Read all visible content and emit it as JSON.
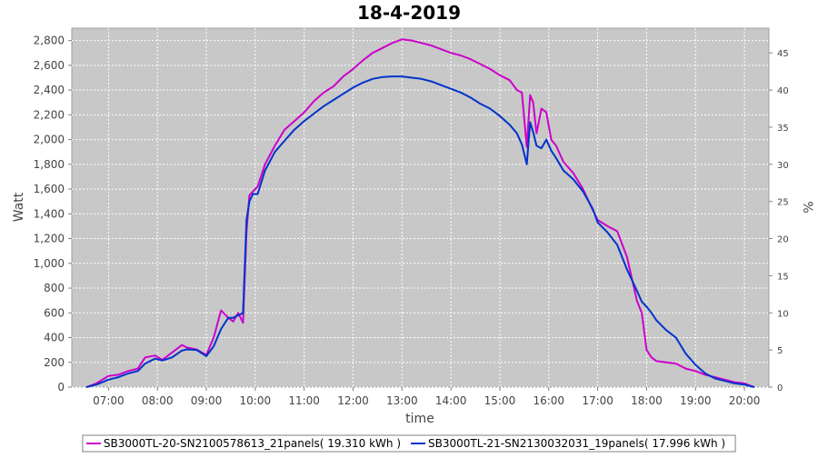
{
  "chart_data": {
    "type": "line",
    "title": "18-4-2019",
    "xlabel": "time",
    "ylabel": "Watt",
    "y2label": "%",
    "xlim": [
      6.25,
      20.5
    ],
    "ylim": [
      0,
      2900
    ],
    "y2lim": [
      0,
      48.33
    ],
    "xticks": [
      7,
      8,
      9,
      10,
      11,
      12,
      13,
      14,
      15,
      16,
      17,
      18,
      19,
      20
    ],
    "xtick_labels": [
      "07:00",
      "08:00",
      "09:00",
      "10:00",
      "11:00",
      "12:00",
      "13:00",
      "14:00",
      "15:00",
      "16:00",
      "17:00",
      "18:00",
      "19:00",
      "20:00"
    ],
    "yticks": [
      0,
      200,
      400,
      600,
      800,
      1000,
      1200,
      1400,
      1600,
      1800,
      2000,
      2200,
      2400,
      2600,
      2800
    ],
    "ytick_labels": [
      "0",
      "200",
      "400",
      "600",
      "800",
      "1,000",
      "1,200",
      "1,400",
      "1,600",
      "1,800",
      "2,000",
      "2,200",
      "2,400",
      "2,600",
      "2,800"
    ],
    "y2ticks": [
      0,
      5,
      10,
      15,
      20,
      25,
      30,
      35,
      40,
      45
    ],
    "y2tick_labels": [
      "0",
      "5",
      "10",
      "15",
      "20",
      "25",
      "30",
      "35",
      "40",
      "45"
    ],
    "grid": true,
    "legend_position": "bottom",
    "series": [
      {
        "name": "SB3000TL-20-SN2100578613_21panels( 19.310 kWh )",
        "color": "#cc00cc",
        "x": [
          6.55,
          6.75,
          7.0,
          7.2,
          7.4,
          7.6,
          7.75,
          7.95,
          8.1,
          8.3,
          8.5,
          8.6,
          8.8,
          9.0,
          9.15,
          9.3,
          9.45,
          9.55,
          9.65,
          9.75,
          9.82,
          9.88,
          9.95,
          10.05,
          10.2,
          10.4,
          10.6,
          10.8,
          11.0,
          11.2,
          11.4,
          11.6,
          11.8,
          12.0,
          12.2,
          12.4,
          12.6,
          12.8,
          13.0,
          13.2,
          13.4,
          13.6,
          13.8,
          14.0,
          14.2,
          14.4,
          14.6,
          14.8,
          15.0,
          15.2,
          15.35,
          15.45,
          15.55,
          15.62,
          15.68,
          15.75,
          15.85,
          15.95,
          16.05,
          16.15,
          16.3,
          16.5,
          16.7,
          16.9,
          17.0,
          17.2,
          17.4,
          17.6,
          17.8,
          17.9,
          18.0,
          18.1,
          18.2,
          18.4,
          18.6,
          18.8,
          19.0,
          19.2,
          19.4,
          19.6,
          19.8,
          20.0,
          20.2
        ],
        "values": [
          0,
          30,
          90,
          100,
          130,
          150,
          240,
          255,
          220,
          280,
          340,
          320,
          305,
          260,
          400,
          620,
          560,
          530,
          600,
          520,
          1250,
          1550,
          1580,
          1620,
          1800,
          1950,
          2080,
          2150,
          2220,
          2310,
          2380,
          2430,
          2510,
          2570,
          2640,
          2700,
          2740,
          2780,
          2810,
          2800,
          2780,
          2760,
          2730,
          2700,
          2680,
          2650,
          2610,
          2570,
          2520,
          2480,
          2400,
          2380,
          1940,
          2360,
          2300,
          2050,
          2250,
          2220,
          2000,
          1950,
          1820,
          1730,
          1600,
          1430,
          1350,
          1300,
          1260,
          1050,
          700,
          600,
          300,
          240,
          210,
          200,
          190,
          150,
          130,
          100,
          80,
          60,
          40,
          30,
          0
        ]
      },
      {
        "name": "SB3000TL-21-SN2130032031_19panels( 17.996 kWh )",
        "color": "#0033cc",
        "x": [
          6.55,
          6.75,
          7.0,
          7.2,
          7.4,
          7.6,
          7.75,
          7.95,
          8.1,
          8.3,
          8.5,
          8.6,
          8.8,
          9.0,
          9.15,
          9.3,
          9.45,
          9.55,
          9.65,
          9.75,
          9.82,
          9.88,
          9.95,
          10.05,
          10.2,
          10.4,
          10.6,
          10.8,
          11.0,
          11.2,
          11.4,
          11.6,
          11.8,
          12.0,
          12.2,
          12.4,
          12.6,
          12.8,
          13.0,
          13.2,
          13.4,
          13.6,
          13.8,
          14.0,
          14.2,
          14.4,
          14.6,
          14.8,
          15.0,
          15.2,
          15.35,
          15.45,
          15.55,
          15.62,
          15.68,
          15.75,
          15.85,
          15.95,
          16.05,
          16.15,
          16.3,
          16.5,
          16.7,
          16.9,
          17.0,
          17.2,
          17.4,
          17.6,
          17.8,
          17.9,
          18.0,
          18.1,
          18.2,
          18.4,
          18.6,
          18.8,
          19.0,
          19.2,
          19.4,
          19.6,
          19.8,
          20.0,
          20.2
        ],
        "values": [
          0,
          20,
          60,
          80,
          110,
          130,
          190,
          230,
          215,
          240,
          295,
          305,
          300,
          250,
          330,
          470,
          560,
          560,
          580,
          600,
          1350,
          1500,
          1560,
          1560,
          1750,
          1900,
          1990,
          2080,
          2150,
          2210,
          2270,
          2320,
          2370,
          2420,
          2460,
          2490,
          2505,
          2510,
          2510,
          2500,
          2490,
          2470,
          2440,
          2410,
          2380,
          2340,
          2290,
          2250,
          2190,
          2120,
          2050,
          1960,
          1800,
          2140,
          2060,
          1950,
          1930,
          2000,
          1910,
          1850,
          1750,
          1680,
          1580,
          1440,
          1330,
          1250,
          1150,
          950,
          780,
          690,
          650,
          600,
          540,
          460,
          400,
          270,
          180,
          110,
          70,
          50,
          30,
          20,
          0
        ]
      }
    ]
  }
}
